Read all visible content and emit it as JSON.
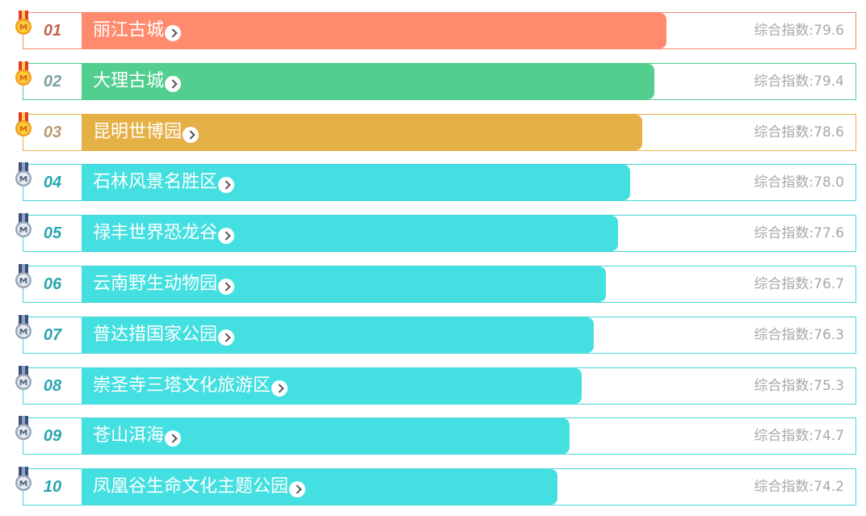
{
  "score_prefix": "综合指数:",
  "items": [
    {
      "rank": "01",
      "name": "丽江古城",
      "score": "79.6",
      "color": "#ff8a6e",
      "border": "#f48a72",
      "rank_color": "#c0654e",
      "medal": "gold"
    },
    {
      "rank": "02",
      "name": "大理古城",
      "score": "79.4",
      "color": "#52cf8f",
      "border": "#52cf8f",
      "rank_color": "#7ea2a2",
      "medal": "gold"
    },
    {
      "rank": "03",
      "name": "昆明世博园",
      "score": "78.6",
      "color": "#e5b046",
      "border": "#e5b046",
      "rank_color": "#bf9a73",
      "medal": "gold"
    },
    {
      "rank": "04",
      "name": "石林风景名胜区",
      "score": "78.0",
      "color": "#44dfe0",
      "border": "#47d6d9",
      "rank_color": "#2aa6b0",
      "medal": "silver"
    },
    {
      "rank": "05",
      "name": "禄丰世界恐龙谷",
      "score": "77.6",
      "color": "#44dfe0",
      "border": "#47d6d9",
      "rank_color": "#2aa6b0",
      "medal": "silver"
    },
    {
      "rank": "06",
      "name": "云南野生动物园",
      "score": "76.7",
      "color": "#44dfe0",
      "border": "#47d6d9",
      "rank_color": "#2aa6b0",
      "medal": "silver"
    },
    {
      "rank": "07",
      "name": "普达措国家公园",
      "score": "76.3",
      "color": "#44dfe0",
      "border": "#47d6d9",
      "rank_color": "#2aa6b0",
      "medal": "silver"
    },
    {
      "rank": "08",
      "name": "崇圣寺三塔文化旅游区",
      "score": "75.3",
      "color": "#44dfe0",
      "border": "#47d6d9",
      "rank_color": "#2aa6b0",
      "medal": "silver"
    },
    {
      "rank": "09",
      "name": "苍山洱海",
      "score": "74.7",
      "color": "#44dfe0",
      "border": "#47d6d9",
      "rank_color": "#2aa6b0",
      "medal": "silver"
    },
    {
      "rank": "10",
      "name": "凤凰谷生命文化主题公园",
      "score": "74.2",
      "color": "#44dfe0",
      "border": "#47d6d9",
      "rank_color": "#2aa6b0",
      "medal": "silver"
    }
  ]
}
